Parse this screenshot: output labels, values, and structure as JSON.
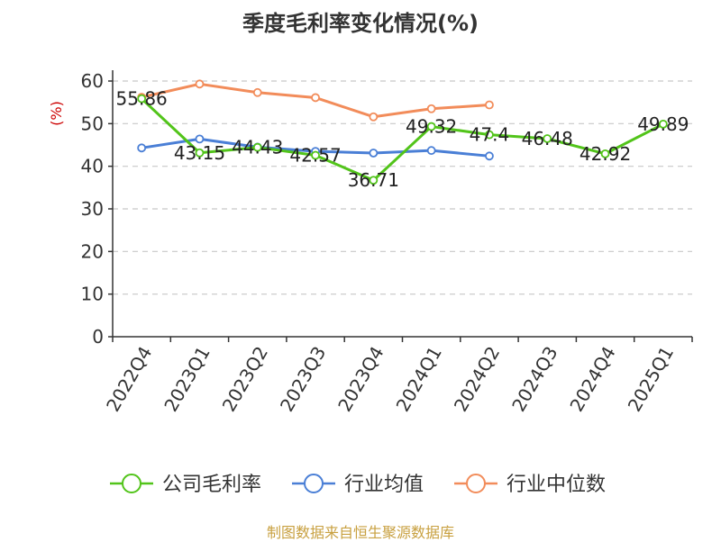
{
  "chart_data": {
    "type": "line",
    "title": "季度毛利率变化情况(%)",
    "ylabel": "(%)",
    "ylim": [
      0,
      60
    ],
    "yticks": [
      0,
      10,
      20,
      30,
      40,
      50,
      60
    ],
    "grid": true,
    "legend_position": "bottom",
    "categories": [
      "2022Q4",
      "2023Q1",
      "2023Q2",
      "2023Q3",
      "2023Q4",
      "2024Q1",
      "2024Q2",
      "2024Q3",
      "2024Q4",
      "2025Q1"
    ],
    "series": [
      {
        "name": "公司毛利率",
        "color": "#52c41a",
        "values": [
          55.86,
          43.15,
          44.43,
          42.57,
          36.71,
          49.32,
          47.4,
          46.48,
          42.92,
          49.89
        ],
        "data_labels": [
          "55.86",
          "43.15",
          "44.43",
          "42.57",
          "36.71",
          "49.32",
          "47.4",
          "46.48",
          "42.92",
          "49.89"
        ]
      },
      {
        "name": "行业均值",
        "color": "#4a7fd6",
        "values": [
          44.3,
          46.4,
          44.5,
          43.5,
          43.1,
          43.7,
          42.4,
          null,
          null,
          null
        ]
      },
      {
        "name": "行业中位数",
        "color": "#f28c5a",
        "values": [
          56.2,
          59.3,
          57.3,
          56.1,
          51.6,
          53.5,
          54.4,
          null,
          null,
          null
        ]
      }
    ]
  },
  "source": "制图数据来自恒生聚源数据库"
}
